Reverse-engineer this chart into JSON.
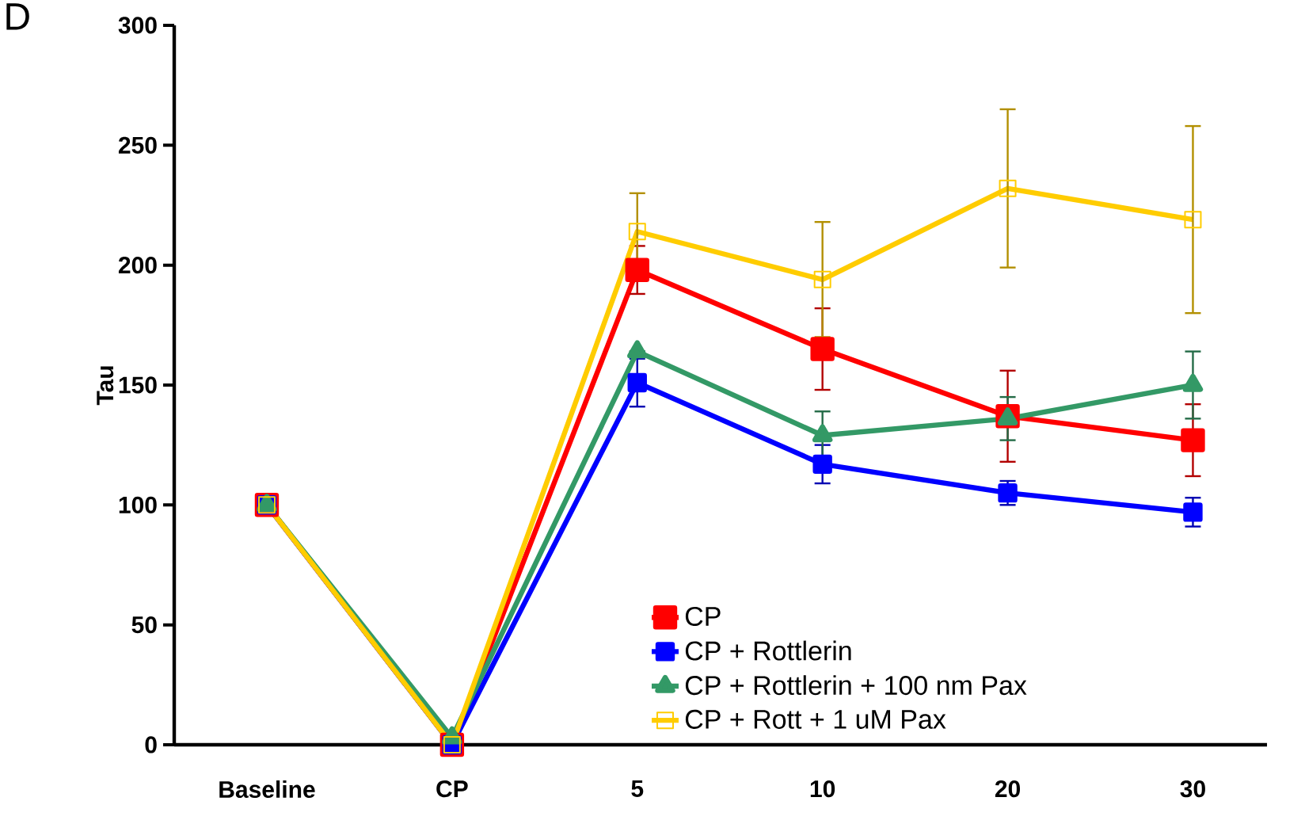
{
  "chart_data": {
    "type": "line",
    "ylabel": "Tau",
    "annotations": [
      "D"
    ],
    "categories": [
      "Baseline",
      "CP",
      "5",
      "10",
      "20",
      "30"
    ],
    "ylim": [
      0,
      300
    ],
    "yticks": [
      0,
      50,
      100,
      150,
      200,
      250,
      300
    ],
    "grid": false,
    "legend": "bottom",
    "series": [
      {
        "name": "CP",
        "color": "#ff0000",
        "marker": "square",
        "values": [
          100,
          0,
          198,
          165,
          137,
          127
        ],
        "errors": [
          null,
          null,
          10,
          17,
          19,
          15
        ]
      },
      {
        "name": "CP + Rottlerin",
        "color": "#0000ff",
        "marker": "square",
        "values": [
          100,
          0,
          151,
          117,
          105,
          97
        ],
        "errors": [
          null,
          null,
          10,
          8,
          5,
          6
        ]
      },
      {
        "name": "CP + Rottlerin + 100 nm Pax",
        "color": "#339966",
        "marker": "triangle",
        "values": [
          100,
          3,
          164,
          129,
          136,
          150
        ],
        "errors": [
          null,
          null,
          null,
          10,
          9,
          14
        ]
      },
      {
        "name": "CP + Rott + 1 uM Pax",
        "color": "#ffcc00",
        "marker": "square",
        "values": [
          100,
          0,
          214,
          194,
          232,
          219
        ],
        "errors": [
          null,
          null,
          16,
          24,
          33,
          39
        ]
      }
    ]
  }
}
